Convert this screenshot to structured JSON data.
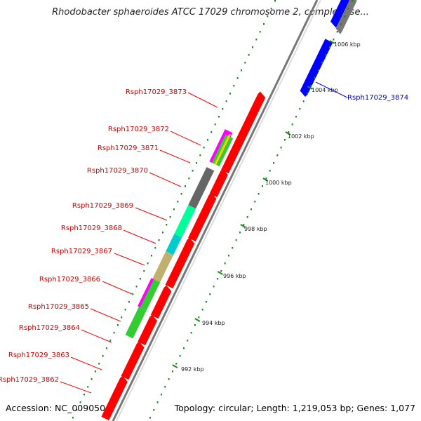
{
  "title": "Rhodobacter sphaeroides ATCC 17029 chromosome 2, complete se...",
  "footer": {
    "accession": "Accession: NC_009050",
    "info": "Topology: circular; Length: 1,219,053 bp; Genes: 1,077"
  },
  "colors": {
    "forward": "#ff0000",
    "reverse": "#0000ff",
    "unknown": "#777777",
    "backbone": "#999999",
    "ticks": "#1a8a1a",
    "label_red": "#cc0000",
    "label_blue": "#0000cc"
  },
  "scale_labels": [
    "1006 kbp",
    "1004 kbp",
    "1002 kbp",
    "1000 kbp",
    "998 kbp",
    "996 kbp",
    "994 kbp",
    "992 kbp"
  ],
  "gene_labels": [
    {
      "text": "Rsph17029_3873",
      "color": "red"
    },
    {
      "text": "Rsph17029_3872",
      "color": "red"
    },
    {
      "text": "Rsph17029_3871",
      "color": "red"
    },
    {
      "text": "Rsph17029_3870",
      "color": "red"
    },
    {
      "text": "Rsph17029_3869",
      "color": "red"
    },
    {
      "text": "Rsph17029_3868",
      "color": "red"
    },
    {
      "text": "Rsph17029_3867",
      "color": "red"
    },
    {
      "text": "Rsph17029_3866",
      "color": "red"
    },
    {
      "text": "Rsph17029_3865",
      "color": "red"
    },
    {
      "text": "Rsph17029_3864",
      "color": "red"
    },
    {
      "text": "Rsph17029_3863",
      "color": "red"
    },
    {
      "text": "Rsph17029_3862",
      "color": "red"
    },
    {
      "text": "Rsph17029_3874",
      "color": "blue"
    }
  ]
}
